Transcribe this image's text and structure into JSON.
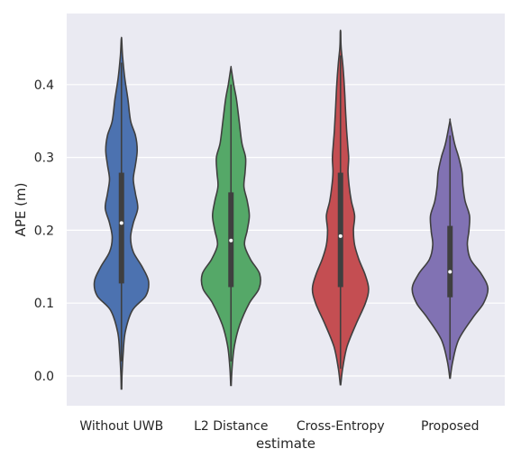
{
  "chart_data": {
    "type": "violin",
    "xlabel": "estimate",
    "ylabel": "APE (m)",
    "ylim": [
      -0.04,
      0.5
    ],
    "yticks": [
      0.0,
      0.1,
      0.2,
      0.3,
      0.4
    ],
    "ytick_labels": [
      "0.0",
      "0.1",
      "0.2",
      "0.3",
      "0.4"
    ],
    "grid": true,
    "background": "#eaeaf2",
    "categories": [
      "Without UWB",
      "L2 Distance",
      "Cross-Entropy",
      "Proposed"
    ],
    "series": [
      {
        "category": "Without UWB",
        "color": "#4c72b0",
        "min": -0.018,
        "max": 0.462,
        "q1": 0.127,
        "median": 0.21,
        "q3": 0.279,
        "whisker_low": 0.02,
        "whisker_high": 0.43,
        "density": [
          [
            -0.018,
            0.004
          ],
          [
            0.0,
            0.01
          ],
          [
            0.03,
            0.03
          ],
          [
            0.06,
            0.07
          ],
          [
            0.09,
            0.2
          ],
          [
            0.11,
            0.45
          ],
          [
            0.13,
            0.5
          ],
          [
            0.15,
            0.38
          ],
          [
            0.17,
            0.22
          ],
          [
            0.19,
            0.17
          ],
          [
            0.21,
            0.22
          ],
          [
            0.23,
            0.3
          ],
          [
            0.25,
            0.26
          ],
          [
            0.27,
            0.22
          ],
          [
            0.29,
            0.26
          ],
          [
            0.31,
            0.29
          ],
          [
            0.33,
            0.26
          ],
          [
            0.35,
            0.17
          ],
          [
            0.38,
            0.12
          ],
          [
            0.41,
            0.06
          ],
          [
            0.44,
            0.02
          ],
          [
            0.462,
            0.004
          ]
        ]
      },
      {
        "category": "L2 Distance",
        "color": "#55a868",
        "min": -0.013,
        "max": 0.422,
        "q1": 0.122,
        "median": 0.186,
        "q3": 0.252,
        "whisker_low": 0.02,
        "whisker_high": 0.4,
        "density": [
          [
            -0.013,
            0.004
          ],
          [
            0.01,
            0.02
          ],
          [
            0.04,
            0.06
          ],
          [
            0.07,
            0.16
          ],
          [
            0.1,
            0.34
          ],
          [
            0.12,
            0.52
          ],
          [
            0.14,
            0.53
          ],
          [
            0.16,
            0.36
          ],
          [
            0.18,
            0.25
          ],
          [
            0.2,
            0.3
          ],
          [
            0.22,
            0.34
          ],
          [
            0.24,
            0.3
          ],
          [
            0.26,
            0.24
          ],
          [
            0.28,
            0.26
          ],
          [
            0.3,
            0.27
          ],
          [
            0.32,
            0.2
          ],
          [
            0.35,
            0.15
          ],
          [
            0.38,
            0.1
          ],
          [
            0.4,
            0.05
          ],
          [
            0.422,
            0.004
          ]
        ]
      },
      {
        "category": "Cross-Entropy",
        "color": "#c44e52",
        "min": -0.012,
        "max": 0.472,
        "q1": 0.122,
        "median": 0.192,
        "q3": 0.279,
        "whisker_low": 0.01,
        "whisker_high": 0.44,
        "density": [
          [
            -0.012,
            0.004
          ],
          [
            0.01,
            0.04
          ],
          [
            0.04,
            0.12
          ],
          [
            0.07,
            0.28
          ],
          [
            0.1,
            0.46
          ],
          [
            0.12,
            0.52
          ],
          [
            0.14,
            0.45
          ],
          [
            0.16,
            0.34
          ],
          [
            0.18,
            0.26
          ],
          [
            0.2,
            0.24
          ],
          [
            0.22,
            0.26
          ],
          [
            0.24,
            0.2
          ],
          [
            0.26,
            0.16
          ],
          [
            0.28,
            0.14
          ],
          [
            0.3,
            0.15
          ],
          [
            0.32,
            0.13
          ],
          [
            0.34,
            0.11
          ],
          [
            0.37,
            0.09
          ],
          [
            0.4,
            0.07
          ],
          [
            0.43,
            0.04
          ],
          [
            0.452,
            0.01
          ],
          [
            0.472,
            0.004
          ]
        ]
      },
      {
        "category": "Proposed",
        "color": "#8172b3",
        "min": -0.003,
        "max": 0.349,
        "q1": 0.108,
        "median": 0.143,
        "q3": 0.206,
        "whisker_low": 0.022,
        "whisker_high": 0.33,
        "density": [
          [
            -0.003,
            0.004
          ],
          [
            0.02,
            0.05
          ],
          [
            0.05,
            0.16
          ],
          [
            0.08,
            0.42
          ],
          [
            0.1,
            0.62
          ],
          [
            0.12,
            0.7
          ],
          [
            0.14,
            0.58
          ],
          [
            0.16,
            0.38
          ],
          [
            0.18,
            0.32
          ],
          [
            0.2,
            0.35
          ],
          [
            0.22,
            0.36
          ],
          [
            0.24,
            0.28
          ],
          [
            0.26,
            0.24
          ],
          [
            0.28,
            0.22
          ],
          [
            0.3,
            0.16
          ],
          [
            0.32,
            0.08
          ],
          [
            0.349,
            0.004
          ]
        ]
      }
    ]
  }
}
